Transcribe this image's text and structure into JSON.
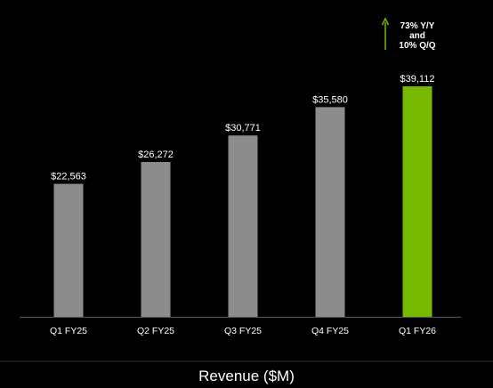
{
  "chart_data": {
    "type": "bar",
    "categories": [
      "Q1 FY25",
      "Q2 FY25",
      "Q3 FY25",
      "Q4 FY25",
      "Q1 FY26"
    ],
    "values": [
      22563,
      26272,
      30771,
      35580,
      39112
    ],
    "value_labels": [
      "$22,563",
      "$26,272",
      "$30,771",
      "$35,580",
      "$39,112"
    ],
    "title": "",
    "xlabel": "Revenue ($M)",
    "ylabel": "",
    "ylim": [
      0,
      39112
    ],
    "grid": false,
    "legend": "none",
    "highlight_index": 4,
    "colors": {
      "background": "#000000",
      "bar": "#8c8c8c",
      "highlight": "#76b900",
      "axis": "#5a5a5a",
      "text": "#ffffff",
      "arrow": "#76b900"
    },
    "annotations": [
      {
        "target": "Q1 FY26",
        "icon": "up-arrow-icon",
        "lines": [
          "73% Y/Y",
          "and",
          "10% Q/Q"
        ]
      }
    ]
  }
}
